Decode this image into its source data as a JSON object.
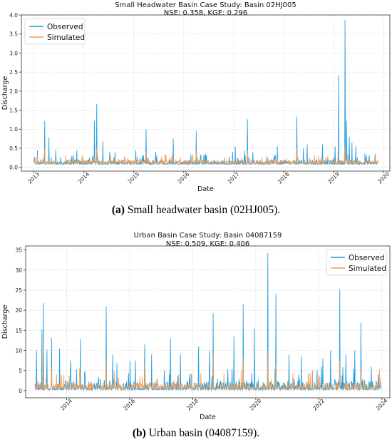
{
  "chart_data": [
    {
      "type": "line",
      "title": "Small Headwater Basin Case Study: Basin 02HJ005",
      "subtitle": "NSE: 0.358, KGE: 0.296",
      "xlabel": "Date",
      "ylabel": "Discharge",
      "xlim": [
        "2012-10-01",
        "2020-02-15"
      ],
      "ylim": [
        -0.1,
        4.0
      ],
      "yticks": [
        "0.0",
        "0.5",
        "1.0",
        "1.5",
        "2.0",
        "2.5",
        "3.0",
        "3.5",
        "4.0"
      ],
      "xticks": [
        "2013",
        "2014",
        "2015",
        "2016",
        "2017",
        "2018",
        "2019",
        "2020"
      ],
      "legend": "top-left",
      "grid": true,
      "series": [
        {
          "name": "Observed",
          "color": "#1f9be0",
          "peaks": [
            [
              "2013-01-25",
              0.45
            ],
            [
              "2013-03-20",
              1.22
            ],
            [
              "2013-04-20",
              0.78
            ],
            [
              "2013-06-10",
              0.45
            ],
            [
              "2013-11-10",
              0.45
            ],
            [
              "2014-03-20",
              1.22
            ],
            [
              "2014-04-05",
              1.66
            ],
            [
              "2014-05-20",
              0.68
            ],
            [
              "2014-07-10",
              0.4
            ],
            [
              "2015-01-15",
              0.45
            ],
            [
              "2015-04-01",
              1.0
            ],
            [
              "2015-06-10",
              0.4
            ],
            [
              "2015-10-15",
              0.75
            ],
            [
              "2016-04-01",
              0.95
            ],
            [
              "2016-06-10",
              0.35
            ],
            [
              "2017-01-10",
              0.55
            ],
            [
              "2017-03-20",
              0.45
            ],
            [
              "2017-04-10",
              1.26
            ],
            [
              "2017-05-20",
              0.4
            ],
            [
              "2017-11-15",
              0.55
            ],
            [
              "2018-04-05",
              1.33
            ],
            [
              "2018-05-25",
              0.5
            ],
            [
              "2018-06-20",
              0.6
            ],
            [
              "2018-10-10",
              0.6
            ],
            [
              "2019-01-10",
              0.55
            ],
            [
              "2019-02-05",
              2.42
            ],
            [
              "2019-03-25",
              3.87
            ],
            [
              "2019-04-05",
              1.22
            ],
            [
              "2019-04-25",
              0.8
            ],
            [
              "2019-05-15",
              0.65
            ],
            [
              "2019-06-10",
              0.55
            ],
            [
              "2019-11-01",
              0.35
            ]
          ]
        },
        {
          "name": "Simulated",
          "color": "#f59a4c",
          "peaks": [
            [
              "2013-01-25",
              0.3
            ],
            [
              "2013-03-20",
              0.5
            ],
            [
              "2014-04-05",
              0.52
            ],
            [
              "2015-04-01",
              0.4
            ],
            [
              "2016-04-01",
              0.45
            ],
            [
              "2017-04-10",
              0.45
            ],
            [
              "2018-04-05",
              0.5
            ],
            [
              "2019-03-25",
              0.55
            ],
            [
              "2019-10-30",
              0.3
            ]
          ]
        }
      ]
    },
    {
      "type": "line",
      "title": "Urban Basin Case Study: Basin 04087159",
      "subtitle": "NSE: 0.509, KGE: 0.406",
      "xlabel": "Date",
      "ylabel": "Discharge",
      "xlim": [
        "2012-09-15",
        "2024-04-01"
      ],
      "ylim": [
        -1.8,
        36
      ],
      "yticks": [
        "0",
        "5",
        "10",
        "15",
        "20",
        "25",
        "30",
        "35"
      ],
      "xticks": [
        "2014",
        "2016",
        "2018",
        "2020",
        "2022",
        "2024"
      ],
      "legend": "top-right",
      "grid": true,
      "series": [
        {
          "name": "Observed",
          "color": "#1f9be0",
          "peaks": [
            [
              "2013-01-20",
              10.0
            ],
            [
              "2013-03-20",
              15.2
            ],
            [
              "2013-04-10",
              21.8
            ],
            [
              "2013-05-20",
              10.2
            ],
            [
              "2013-07-10",
              13.1
            ],
            [
              "2013-10-15",
              10.5
            ],
            [
              "2014-02-20",
              7.5
            ],
            [
              "2014-06-10",
              12.8
            ],
            [
              "2015-04-05",
              21.0
            ],
            [
              "2015-06-20",
              9.0
            ],
            [
              "2016-03-10",
              7.5
            ],
            [
              "2016-06-25",
              11.5
            ],
            [
              "2016-09-10",
              9.0
            ],
            [
              "2017-04-20",
              13.0
            ],
            [
              "2017-08-10",
              9.0
            ],
            [
              "2018-03-10",
              11.0
            ],
            [
              "2018-07-15",
              10.0
            ],
            [
              "2018-08-25",
              19.3
            ],
            [
              "2019-04-25",
              13.5
            ],
            [
              "2019-08-10",
              21.5
            ],
            [
              "2019-12-15",
              15.5
            ],
            [
              "2020-05-20",
              34.3
            ],
            [
              "2020-08-20",
              24.1
            ],
            [
              "2021-01-20",
              9.0
            ],
            [
              "2021-06-10",
              8.5
            ],
            [
              "2022-02-15",
              8.0
            ],
            [
              "2022-05-15",
              10.0
            ],
            [
              "2022-09-01",
              25.3
            ],
            [
              "2022-11-10",
              9.0
            ],
            [
              "2023-02-20",
              10.0
            ],
            [
              "2023-05-01",
              16.9
            ],
            [
              "2023-09-01",
              6.0
            ],
            [
              "2023-11-20",
              4.0
            ]
          ]
        },
        {
          "name": "Simulated",
          "color": "#f59a4c",
          "peaks": [
            [
              "2013-04-10",
              12.0
            ],
            [
              "2013-07-10",
              6.0
            ],
            [
              "2015-04-05",
              7.5
            ],
            [
              "2016-06-25",
              6.5
            ],
            [
              "2018-08-25",
              9.0
            ],
            [
              "2019-08-10",
              8.5
            ],
            [
              "2020-05-20",
              10.0
            ],
            [
              "2020-08-20",
              6.5
            ],
            [
              "2022-09-01",
              7.5
            ],
            [
              "2023-05-01",
              5.5
            ]
          ]
        }
      ]
    }
  ],
  "captions": [
    {
      "label": "(a)",
      "text": " Small headwater basin (02HJ005)."
    },
    {
      "label": "(b)",
      "text": " Urban basin (04087159)."
    }
  ]
}
